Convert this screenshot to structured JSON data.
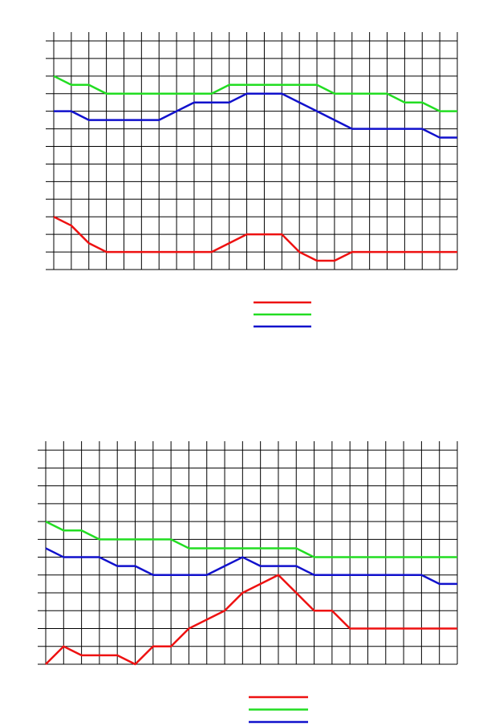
{
  "chart_data": [
    {
      "type": "line",
      "grid": true,
      "x": [
        0,
        1,
        2,
        3,
        4,
        5,
        6,
        7,
        8,
        9,
        10,
        11,
        12,
        13,
        14,
        15,
        16,
        17,
        18,
        19,
        20,
        21,
        22,
        23
      ],
      "xlim": [
        0,
        23
      ],
      "xticks": [
        0,
        1,
        2,
        3,
        4,
        5,
        6,
        7,
        8,
        9,
        10,
        11,
        12,
        13,
        14,
        15,
        16,
        17,
        18,
        19,
        20,
        21,
        22,
        23
      ],
      "ylim": [
        0,
        13.5
      ],
      "yticks": [
        0,
        1,
        2,
        3,
        4,
        5,
        6,
        7,
        8,
        9,
        10,
        11,
        12,
        13
      ],
      "series": [
        {
          "color": "#ee1111",
          "values": [
            3,
            2.5,
            1.5,
            1,
            1,
            1,
            1,
            1,
            1,
            1,
            1.5,
            2,
            2,
            2,
            1,
            0.5,
            0.5,
            1,
            1,
            1,
            1,
            1,
            1,
            1
          ]
        },
        {
          "color": "#22dd22",
          "values": [
            11,
            10.5,
            10.5,
            10,
            10,
            10,
            10,
            10,
            10,
            10,
            10.5,
            10.5,
            10.5,
            10.5,
            10.5,
            10.5,
            10,
            10,
            10,
            10,
            9.5,
            9.5,
            9,
            9
          ]
        },
        {
          "color": "#1111cc",
          "values": [
            9,
            9,
            8.5,
            8.5,
            8.5,
            8.5,
            8.5,
            9,
            9.5,
            9.5,
            9.5,
            10,
            10,
            10,
            9.5,
            9,
            8.5,
            8,
            8,
            8,
            8,
            8,
            7.5,
            7.5
          ]
        }
      ]
    },
    {
      "type": "line",
      "grid": true,
      "x": [
        0,
        1,
        2,
        3,
        4,
        5,
        6,
        7,
        8,
        9,
        10,
        11,
        12,
        13,
        14,
        15,
        16,
        17,
        18,
        19,
        20,
        21,
        22,
        23
      ],
      "xlim": [
        0,
        23
      ],
      "xticks": [
        0,
        1,
        2,
        3,
        4,
        5,
        6,
        7,
        8,
        9,
        10,
        11,
        12,
        13,
        14,
        15,
        16,
        17,
        18,
        19,
        20,
        21,
        22,
        23
      ],
      "ylim": [
        0,
        12.5
      ],
      "yticks": [
        0,
        1,
        2,
        3,
        4,
        5,
        6,
        7,
        8,
        9,
        10,
        11,
        12
      ],
      "series": [
        {
          "color": "#ee1111",
          "values": [
            0,
            1,
            0.5,
            0.5,
            0.5,
            0,
            1,
            1,
            2,
            2.5,
            3,
            4,
            4.5,
            5,
            4,
            3,
            3,
            2,
            2,
            2,
            2,
            2,
            2,
            2
          ]
        },
        {
          "color": "#22dd22",
          "values": [
            8,
            7.5,
            7.5,
            7,
            7,
            7,
            7,
            7,
            6.5,
            6.5,
            6.5,
            6.5,
            6.5,
            6.5,
            6.5,
            6,
            6,
            6,
            6,
            6,
            6,
            6,
            6,
            6
          ]
        },
        {
          "color": "#1111cc",
          "values": [
            6.5,
            6,
            6,
            6,
            5.5,
            5.5,
            5,
            5,
            5,
            5,
            5.5,
            6,
            5.5,
            5.5,
            5.5,
            5,
            5,
            5,
            5,
            5,
            5,
            5,
            4.5,
            4.5
          ]
        }
      ]
    }
  ]
}
